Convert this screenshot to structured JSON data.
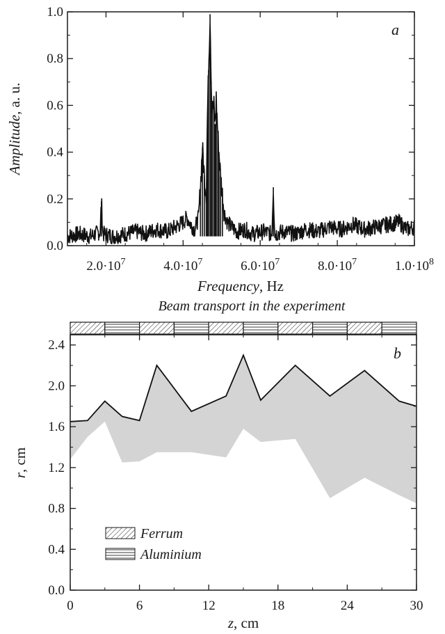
{
  "chart_data": [
    {
      "panel": "a",
      "type": "line",
      "ylabel_italic": "Amplitude",
      "ylabel_unit": ", a. u.",
      "xlabel_italic": "Frequency",
      "xlabel_unit": ", Hz",
      "xlim": [
        10000000,
        100000000
      ],
      "ylim": [
        0,
        1.0
      ],
      "yticks": [
        0.0,
        0.2,
        0.4,
        0.6,
        0.8,
        1.0
      ],
      "ytick_labels": [
        "0.0",
        "0.2",
        "0.4",
        "0.6",
        "0.8",
        "1.0"
      ],
      "xticks": [
        20000000,
        40000000,
        60000000,
        80000000,
        100000000
      ],
      "xtick_mantissas": [
        "2.0",
        "4.0",
        "6.0",
        "8.0",
        "1.0"
      ],
      "xtick_base": "10",
      "xtick_exponents": [
        "7",
        "7",
        "7",
        "7",
        "8"
      ],
      "grid": false,
      "series": [
        {
          "x": [
            10000000,
            13000000,
            16000000,
            18500000,
            18800000,
            19200000,
            22000000,
            25000000,
            28000000,
            30000000,
            33000000,
            36000000,
            38000000,
            40000000,
            41000000,
            42000000,
            43000000,
            44000000,
            44500000,
            45000000,
            45500000,
            46000000,
            46300000,
            46600000,
            47000000,
            47300000,
            47600000,
            48000000,
            48300000,
            48600000,
            49000000,
            49300000,
            49700000,
            50200000,
            50700000,
            51500000,
            52500000,
            54000000,
            56000000,
            58000000,
            61000000,
            63000000,
            63400000,
            63800000,
            66000000,
            69000000,
            72000000,
            75000000,
            78000000,
            81000000,
            84000000,
            87000000,
            90000000,
            93000000,
            96000000,
            98000000,
            100000000
          ],
          "y": [
            0.04,
            0.05,
            0.04,
            0.06,
            0.19,
            0.05,
            0.04,
            0.05,
            0.06,
            0.05,
            0.07,
            0.06,
            0.08,
            0.1,
            0.12,
            0.09,
            0.07,
            0.12,
            0.25,
            0.42,
            0.3,
            0.22,
            0.55,
            0.75,
            0.99,
            0.7,
            0.58,
            0.6,
            0.52,
            0.63,
            0.48,
            0.4,
            0.3,
            0.22,
            0.14,
            0.1,
            0.08,
            0.06,
            0.07,
            0.05,
            0.06,
            0.05,
            0.25,
            0.05,
            0.06,
            0.05,
            0.07,
            0.06,
            0.08,
            0.07,
            0.09,
            0.07,
            0.08,
            0.09,
            0.1,
            0.07,
            0.08
          ]
        }
      ]
    },
    {
      "panel": "b",
      "type": "area",
      "strip_title": "Beam transport in the experiment",
      "ylabel_italic": "r",
      "ylabel_unit": ", cm",
      "xlabel_italic": "z",
      "xlabel_unit": ", cm",
      "xlim": [
        0,
        30
      ],
      "ylim": [
        0,
        2.5
      ],
      "yticks": [
        0.0,
        0.4,
        0.8,
        1.2,
        1.6,
        2.0,
        2.4
      ],
      "ytick_labels": [
        "0.0",
        "0.4",
        "0.8",
        "1.2",
        "1.6",
        "2.0",
        "2.4"
      ],
      "xticks": [
        0,
        6,
        12,
        18,
        24,
        30
      ],
      "xtick_labels": [
        "0",
        "6",
        "12",
        "18",
        "24",
        "30"
      ],
      "grid": false,
      "envelope_x": [
        0,
        1.5,
        3,
        4.5,
        6,
        7.5,
        10.5,
        13.5,
        15,
        16.5,
        19.5,
        22.5,
        25.5,
        28.5,
        30
      ],
      "outer_r": [
        1.65,
        1.66,
        1.85,
        1.7,
        1.66,
        2.2,
        1.75,
        1.9,
        2.3,
        1.86,
        2.2,
        1.9,
        2.15,
        1.85,
        1.8
      ],
      "inner_r": [
        1.28,
        1.5,
        1.65,
        1.25,
        1.26,
        1.35,
        1.35,
        1.3,
        1.58,
        1.45,
        1.48,
        0.9,
        1.1,
        0.93,
        0.85
      ],
      "strip_segments": [
        "Ferrum",
        "Aluminium",
        "Ferrum",
        "Aluminium",
        "Ferrum",
        "Aluminium",
        "Ferrum",
        "Aluminium",
        "Ferrum",
        "Aluminium"
      ],
      "legend": [
        "Ferrum",
        "Aluminium"
      ],
      "fill_color": "#d4d4d4",
      "line_color": "#111111"
    }
  ]
}
